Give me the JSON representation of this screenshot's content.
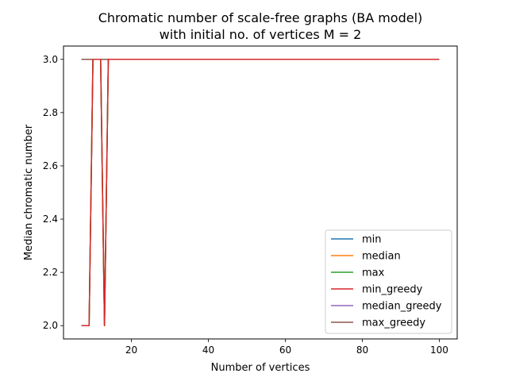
{
  "chart_data": {
    "type": "line",
    "title_line1": "Chromatic number of scale-free graphs (BA model)",
    "title_line2": "with initial no. of vertices M = 2",
    "xlabel": "Number of vertices",
    "ylabel": "Median chromatic number",
    "xlim": [
      2.35,
      104.65
    ],
    "ylim": [
      1.95,
      3.05
    ],
    "xticks": [
      20,
      40,
      60,
      80,
      100
    ],
    "yticks": [
      2.0,
      2.2,
      2.4,
      2.6,
      2.8,
      3.0
    ],
    "ytick_labels": [
      "2.0",
      "2.2",
      "2.4",
      "2.6",
      "2.8",
      "3.0"
    ],
    "grid": false,
    "legend_position": "lower right",
    "x": [
      7,
      8,
      9,
      10,
      11,
      12,
      13,
      14,
      15,
      20,
      30,
      40,
      50,
      60,
      70,
      80,
      90,
      100
    ],
    "series": [
      {
        "name": "min",
        "color": "#1f77b4",
        "values": [
          2,
          2,
          2,
          3,
          3,
          3,
          2,
          3,
          3,
          3,
          3,
          3,
          3,
          3,
          3,
          3,
          3,
          3
        ]
      },
      {
        "name": "median",
        "color": "#ff7f0e",
        "values": [
          2,
          2,
          2,
          3,
          3,
          3,
          2,
          3,
          3,
          3,
          3,
          3,
          3,
          3,
          3,
          3,
          3,
          3
        ]
      },
      {
        "name": "max",
        "color": "#2ca02c",
        "values": [
          2,
          2,
          2,
          3,
          3,
          3,
          2,
          3,
          3,
          3,
          3,
          3,
          3,
          3,
          3,
          3,
          3,
          3
        ]
      },
      {
        "name": "min_greedy",
        "color": "#d62728",
        "values": [
          2,
          2,
          2,
          3,
          3,
          3,
          2,
          3,
          3,
          3,
          3,
          3,
          3,
          3,
          3,
          3,
          3,
          3
        ]
      },
      {
        "name": "median_greedy",
        "color": "#9467bd",
        "values": [
          3,
          3,
          3,
          3,
          3,
          3,
          3,
          3,
          3,
          3,
          3,
          3,
          3,
          3,
          3,
          3,
          3,
          3
        ]
      },
      {
        "name": "max_greedy",
        "color": "#8c564b",
        "values": [
          3,
          3,
          3,
          3,
          3,
          3,
          3,
          3,
          3,
          3,
          3,
          3,
          3,
          3,
          3,
          3,
          3,
          3
        ]
      }
    ],
    "draw_order": [
      "median_greedy",
      "max_greedy",
      "min",
      "median",
      "max",
      "min_greedy"
    ]
  }
}
